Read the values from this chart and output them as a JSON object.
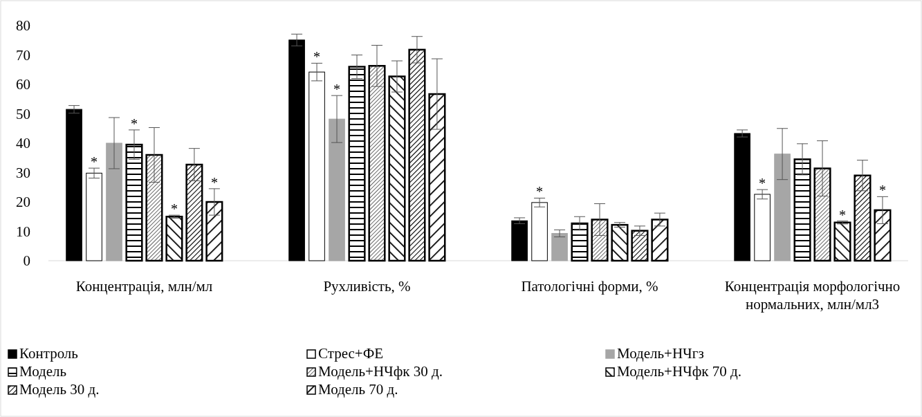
{
  "chart_data": {
    "type": "bar",
    "categories": [
      "Концентрація, млн/мл",
      "Рухливість, %",
      "Патологічні форми, %",
      "Концентрація морфологічно нормальних, млн/мл3"
    ],
    "ylim": [
      0,
      80
    ],
    "yticks": [
      0,
      10,
      20,
      30,
      40,
      50,
      60,
      70,
      80
    ],
    "grid": false,
    "legend": "bottom",
    "series": [
      {
        "name": "Контроль",
        "color": "#000000",
        "values": [
          51.5,
          75.1,
          13.6,
          43.3
        ],
        "errors": [
          1.3,
          2,
          1,
          1.2
        ]
      },
      {
        "name": "Стрес+ФЕ",
        "color": "#ffffff",
        "values": [
          29.8,
          64.2,
          19.8,
          22.6
        ],
        "errors": [
          1.7,
          3,
          1.5,
          1.6
        ],
        "value_labels": [
          "*",
          "*",
          "*",
          "*"
        ]
      },
      {
        "name": "Модель+НЧгз",
        "color": "#a6a6a6",
        "values": [
          40,
          48.2,
          9.3,
          36.3
        ],
        "errors": [
          8.7,
          8,
          1.2,
          8.7
        ],
        "value_labels": [
          null,
          "*",
          null,
          null
        ]
      },
      {
        "name": "Модель",
        "color": "#000000",
        "values": [
          39.5,
          66,
          12.7,
          34.5
        ],
        "errors": [
          5,
          4,
          2.3,
          5.3
        ],
        "value_labels": [
          "*",
          null,
          null,
          null
        ]
      },
      {
        "name": "Модель+НЧфк 30 д.",
        "color": "#000000",
        "values": [
          36,
          66.3,
          14,
          31.4
        ],
        "errors": [
          9.3,
          7,
          5.4,
          9.4
        ]
      },
      {
        "name": "Модель+НЧфк 70 д.",
        "color": "#000000",
        "values": [
          15,
          62.7,
          12.2,
          13
        ],
        "errors": [
          0.5,
          5.3,
          0.8,
          0.5
        ],
        "value_labels": [
          "*",
          null,
          null,
          "*"
        ]
      },
      {
        "name": "Модель 30 д.",
        "color": "#000000",
        "values": [
          32.7,
          71.8,
          10.2,
          29
        ],
        "errors": [
          5.5,
          4.5,
          1.6,
          5.2
        ]
      },
      {
        "name": "Модель 70 д.",
        "color": "#000000",
        "values": [
          20,
          56.7,
          14,
          17.2
        ],
        "errors": [
          4.5,
          12,
          2.2,
          4.6
        ],
        "value_labels": [
          "*",
          null,
          null,
          "*"
        ]
      }
    ]
  }
}
